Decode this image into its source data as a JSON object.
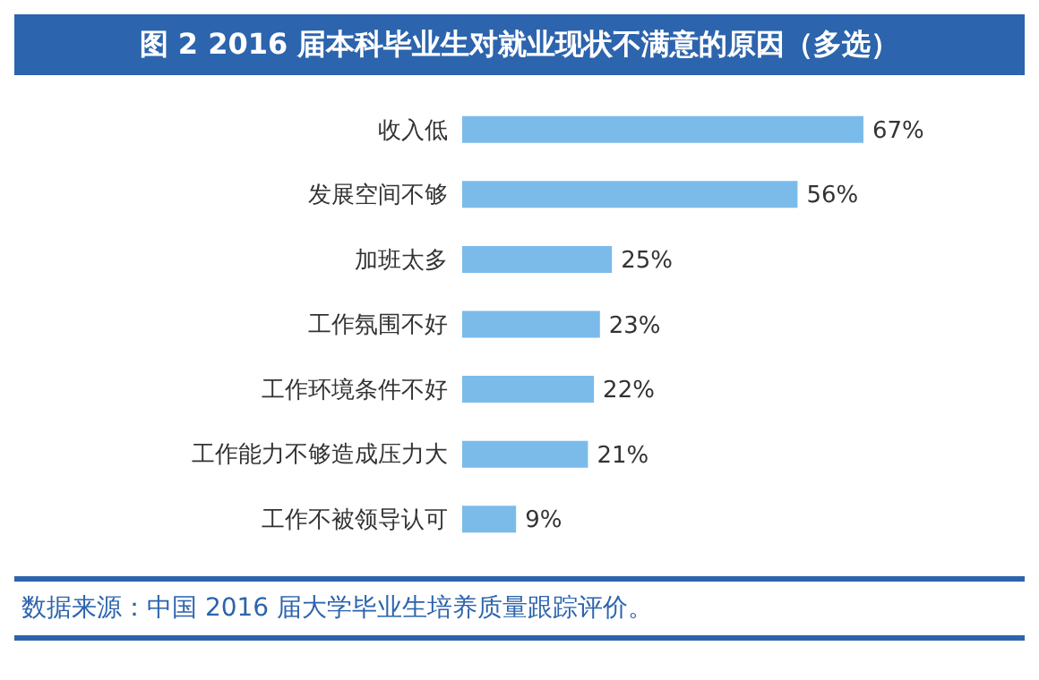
{
  "chart_data": {
    "type": "bar",
    "orientation": "horizontal",
    "title": "图 2  2016 届本科毕业生对就业现状不满意的原因（多选）",
    "categories": [
      "收入低",
      "发展空间不够",
      "加班太多",
      "工作氛围不好",
      "工作环境条件不好",
      "工作能力不够造成压力大",
      "工作不被领导认可"
    ],
    "values": [
      67,
      56,
      25,
      23,
      22,
      21,
      9
    ],
    "value_labels": [
      "67%",
      "56%",
      "25%",
      "23%",
      "22%",
      "21%",
      "9%"
    ],
    "color": "#7bbbea",
    "tick_labels": "y",
    "annotations": [
      "数据来源：中国 2016 届大学毕业生培养质量跟踪评价。"
    ]
  }
}
